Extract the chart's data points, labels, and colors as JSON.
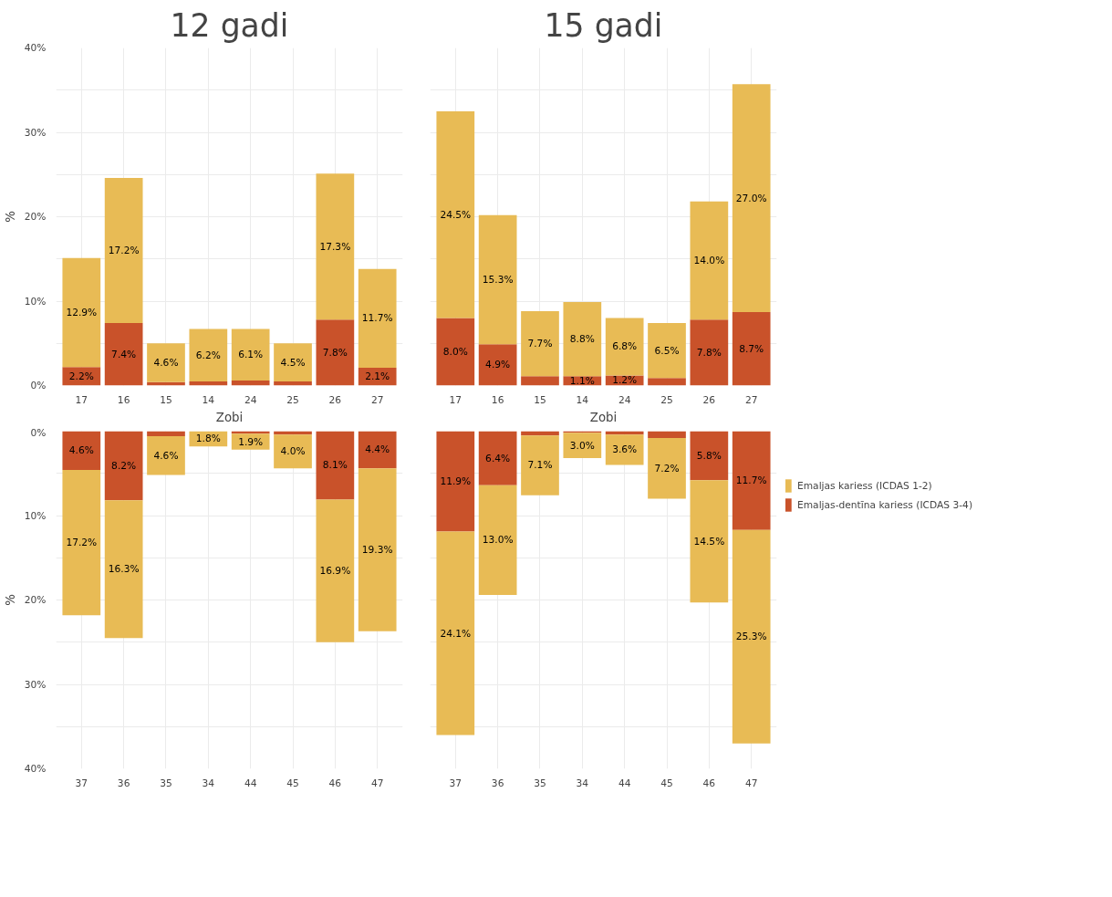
{
  "chart_data": [
    {
      "type": "bar",
      "title": "12 gadi",
      "xlabel": "Zobi",
      "ylabel": "%",
      "stacked": true,
      "grid": true,
      "categories": [
        "17",
        "16",
        "15",
        "14",
        "24",
        "25",
        "26",
        "27"
      ],
      "ylim": [
        0,
        40
      ],
      "yticks": [
        {
          "value": 0,
          "label": "0%"
        },
        {
          "value": 5,
          "label": null
        },
        {
          "value": 10,
          "label": "10%"
        },
        {
          "value": 15,
          "label": null
        },
        {
          "value": 20,
          "label": "20%"
        },
        {
          "value": 25,
          "label": null
        },
        {
          "value": 30,
          "label": "30%"
        },
        {
          "value": 35,
          "label": null
        },
        {
          "value": 40,
          "label": "40%"
        }
      ],
      "series": [
        {
          "color": "#c9522a",
          "values": [
            2.2,
            7.4,
            0.4,
            0.5,
            0.6,
            0.5,
            7.8,
            2.1
          ],
          "value_labels": [
            "2.2%",
            "7.4%",
            null,
            null,
            null,
            null,
            "7.8%",
            "2.1%"
          ]
        },
        {
          "color": "#e8bb55",
          "values": [
            12.9,
            17.2,
            4.6,
            6.2,
            6.1,
            4.5,
            17.3,
            11.7
          ],
          "value_labels": [
            "12.9%",
            "17.2%",
            "4.6%",
            "6.2%",
            "6.1%",
            "4.5%",
            "17.3%",
            "11.7%"
          ]
        }
      ]
    },
    {
      "type": "bar",
      "title": "15 gadi",
      "xlabel": "Zobi",
      "stacked": true,
      "grid": true,
      "tick_labels": "x",
      "legend": "right",
      "categories": [
        "17",
        "16",
        "15",
        "14",
        "24",
        "25",
        "26",
        "27"
      ],
      "ylim": [
        0,
        40
      ],
      "yticks": [
        0,
        5,
        10,
        15,
        20,
        25,
        30,
        35,
        40
      ],
      "series": [
        {
          "name": "Emaljas-dentīna kariess (ICDAS 3-4)",
          "color": "#c9522a",
          "values": [
            8.0,
            4.9,
            1.1,
            1.1,
            1.2,
            0.9,
            7.8,
            8.7
          ],
          "value_labels": [
            "8.0%",
            "4.9%",
            null,
            "1.1%",
            "1.2%",
            null,
            "7.8%",
            "8.7%"
          ]
        },
        {
          "name": "Emaljas kariess (ICDAS 1-2)",
          "color": "#e8bb55",
          "values": [
            24.5,
            15.3,
            7.7,
            8.8,
            6.8,
            6.5,
            14.0,
            27.0
          ],
          "value_labels": [
            "24.5%",
            "15.3%",
            "7.7%",
            "8.8%",
            "6.8%",
            "6.5%",
            "14.0%",
            "27.0%"
          ]
        }
      ]
    },
    {
      "type": "bar",
      "ylabel": "%",
      "stacked": true,
      "grid": true,
      "categories": [
        "37",
        "36",
        "35",
        "34",
        "44",
        "45",
        "46",
        "47"
      ],
      "ylim": [
        40,
        0
      ],
      "yticks": [
        {
          "value": 0,
          "label": "0%"
        },
        {
          "value": 5,
          "label": null
        },
        {
          "value": 10,
          "label": "10%"
        },
        {
          "value": 15,
          "label": null
        },
        {
          "value": 20,
          "label": "20%"
        },
        {
          "value": 25,
          "label": null
        },
        {
          "value": 30,
          "label": "30%"
        },
        {
          "value": 35,
          "label": null
        },
        {
          "value": 40,
          "label": "40%"
        }
      ],
      "series": [
        {
          "color": "#c9522a",
          "values": [
            4.6,
            8.2,
            0.6,
            null,
            0.3,
            0.4,
            8.1,
            4.4
          ],
          "value_labels": [
            "4.6%",
            "8.2%",
            null,
            null,
            null,
            null,
            "8.1%",
            "4.4%"
          ]
        },
        {
          "color": "#e8bb55",
          "values": [
            17.2,
            16.3,
            4.6,
            1.8,
            1.9,
            4.0,
            16.9,
            19.3
          ],
          "value_labels": [
            "17.2%",
            "16.3%",
            "4.6%",
            "1.8%",
            "1.9%",
            "4.0%",
            "16.9%",
            "19.3%"
          ]
        }
      ]
    },
    {
      "type": "bar",
      "stacked": true,
      "grid": true,
      "tick_labels": "x",
      "categories": [
        "37",
        "36",
        "35",
        "34",
        "44",
        "45",
        "46",
        "47"
      ],
      "ylim": [
        40,
        0
      ],
      "yticks": [
        0,
        5,
        10,
        15,
        20,
        25,
        30,
        35,
        40
      ],
      "series": [
        {
          "color": "#c9522a",
          "values": [
            11.9,
            6.4,
            0.5,
            0.2,
            0.4,
            0.8,
            5.8,
            11.7
          ],
          "value_labels": [
            "11.9%",
            "6.4%",
            null,
            null,
            null,
            null,
            "5.8%",
            "11.7%"
          ]
        },
        {
          "color": "#e8bb55",
          "values": [
            24.1,
            13.0,
            7.1,
            3.0,
            3.6,
            7.2,
            14.5,
            25.3
          ],
          "value_labels": [
            "24.1%",
            "13.0%",
            "7.1%",
            "3.0%",
            "3.6%",
            "7.2%",
            "14.5%",
            "25.3%"
          ]
        }
      ]
    }
  ]
}
